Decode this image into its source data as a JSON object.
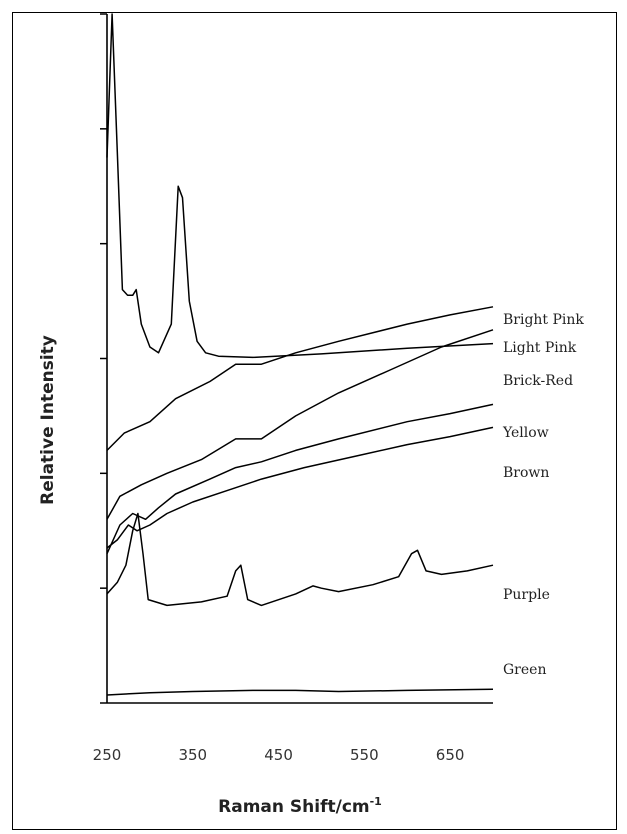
{
  "chart_data": {
    "type": "line",
    "xlabel": "Raman Shift/cm",
    "xlabel_superscript": "-1",
    "ylabel": "Relative Intensity",
    "xlim": [
      250,
      700
    ],
    "ylim": [
      0,
      6
    ],
    "x_ticks": [
      250,
      350,
      450,
      550,
      650
    ],
    "y_tick_count": 6,
    "grid": false,
    "legend": "inline-right",
    "series": [
      {
        "name": "Bright Pink",
        "points": [
          [
            250,
            4.75
          ],
          [
            256,
            6.0
          ],
          [
            262,
            4.8
          ],
          [
            268,
            3.6
          ],
          [
            274,
            3.55
          ],
          [
            280,
            3.55
          ],
          [
            284,
            3.6
          ],
          [
            290,
            3.3
          ],
          [
            300,
            3.1
          ],
          [
            310,
            3.05
          ],
          [
            325,
            3.3
          ],
          [
            333,
            4.5
          ],
          [
            338,
            4.4
          ],
          [
            346,
            3.5
          ],
          [
            355,
            3.15
          ],
          [
            365,
            3.05
          ],
          [
            380,
            3.02
          ],
          [
            420,
            3.01
          ],
          [
            500,
            3.04
          ],
          [
            600,
            3.09
          ],
          [
            700,
            3.13
          ]
        ]
      },
      {
        "name": "Light Pink",
        "points": [
          [
            250,
            2.2
          ],
          [
            270,
            2.35
          ],
          [
            300,
            2.45
          ],
          [
            330,
            2.65
          ],
          [
            370,
            2.8
          ],
          [
            400,
            2.95
          ],
          [
            430,
            2.95
          ],
          [
            470,
            3.05
          ],
          [
            520,
            3.15
          ],
          [
            600,
            3.3
          ],
          [
            650,
            3.38
          ],
          [
            700,
            3.45
          ]
        ]
      },
      {
        "name": "Brick-Red",
        "points": [
          [
            250,
            1.6
          ],
          [
            265,
            1.8
          ],
          [
            290,
            1.9
          ],
          [
            320,
            2.0
          ],
          [
            360,
            2.12
          ],
          [
            400,
            2.3
          ],
          [
            430,
            2.3
          ],
          [
            470,
            2.5
          ],
          [
            520,
            2.7
          ],
          [
            580,
            2.9
          ],
          [
            640,
            3.1
          ],
          [
            700,
            3.25
          ]
        ]
      },
      {
        "name": "Yellow",
        "points": [
          [
            250,
            1.3
          ],
          [
            265,
            1.55
          ],
          [
            280,
            1.65
          ],
          [
            295,
            1.6
          ],
          [
            310,
            1.7
          ],
          [
            330,
            1.82
          ],
          [
            370,
            1.95
          ],
          [
            400,
            2.05
          ],
          [
            430,
            2.1
          ],
          [
            470,
            2.2
          ],
          [
            520,
            2.3
          ],
          [
            600,
            2.45
          ],
          [
            650,
            2.52
          ],
          [
            700,
            2.6
          ]
        ]
      },
      {
        "name": "Brown",
        "points": [
          [
            250,
            1.35
          ],
          [
            262,
            1.42
          ],
          [
            275,
            1.55
          ],
          [
            285,
            1.5
          ],
          [
            300,
            1.55
          ],
          [
            320,
            1.65
          ],
          [
            350,
            1.75
          ],
          [
            390,
            1.85
          ],
          [
            430,
            1.95
          ],
          [
            480,
            2.05
          ],
          [
            540,
            2.15
          ],
          [
            600,
            2.25
          ],
          [
            650,
            2.32
          ],
          [
            700,
            2.4
          ]
        ]
      },
      {
        "name": "Purple",
        "points": [
          [
            250,
            0.95
          ],
          [
            262,
            1.05
          ],
          [
            272,
            1.2
          ],
          [
            280,
            1.5
          ],
          [
            286,
            1.65
          ],
          [
            292,
            1.3
          ],
          [
            298,
            0.9
          ],
          [
            320,
            0.85
          ],
          [
            360,
            0.88
          ],
          [
            390,
            0.93
          ],
          [
            400,
            1.15
          ],
          [
            406,
            1.2
          ],
          [
            414,
            0.9
          ],
          [
            430,
            0.85
          ],
          [
            470,
            0.95
          ],
          [
            490,
            1.02
          ],
          [
            500,
            1.0
          ],
          [
            520,
            0.97
          ],
          [
            560,
            1.03
          ],
          [
            590,
            1.1
          ],
          [
            605,
            1.3
          ],
          [
            612,
            1.33
          ],
          [
            622,
            1.15
          ],
          [
            640,
            1.12
          ],
          [
            670,
            1.15
          ],
          [
            700,
            1.2
          ]
        ]
      },
      {
        "name": "Green",
        "points": [
          [
            250,
            0.07
          ],
          [
            300,
            0.09
          ],
          [
            350,
            0.1
          ],
          [
            420,
            0.11
          ],
          [
            470,
            0.11
          ],
          [
            520,
            0.1
          ],
          [
            600,
            0.11
          ],
          [
            700,
            0.12
          ]
        ]
      }
    ]
  }
}
